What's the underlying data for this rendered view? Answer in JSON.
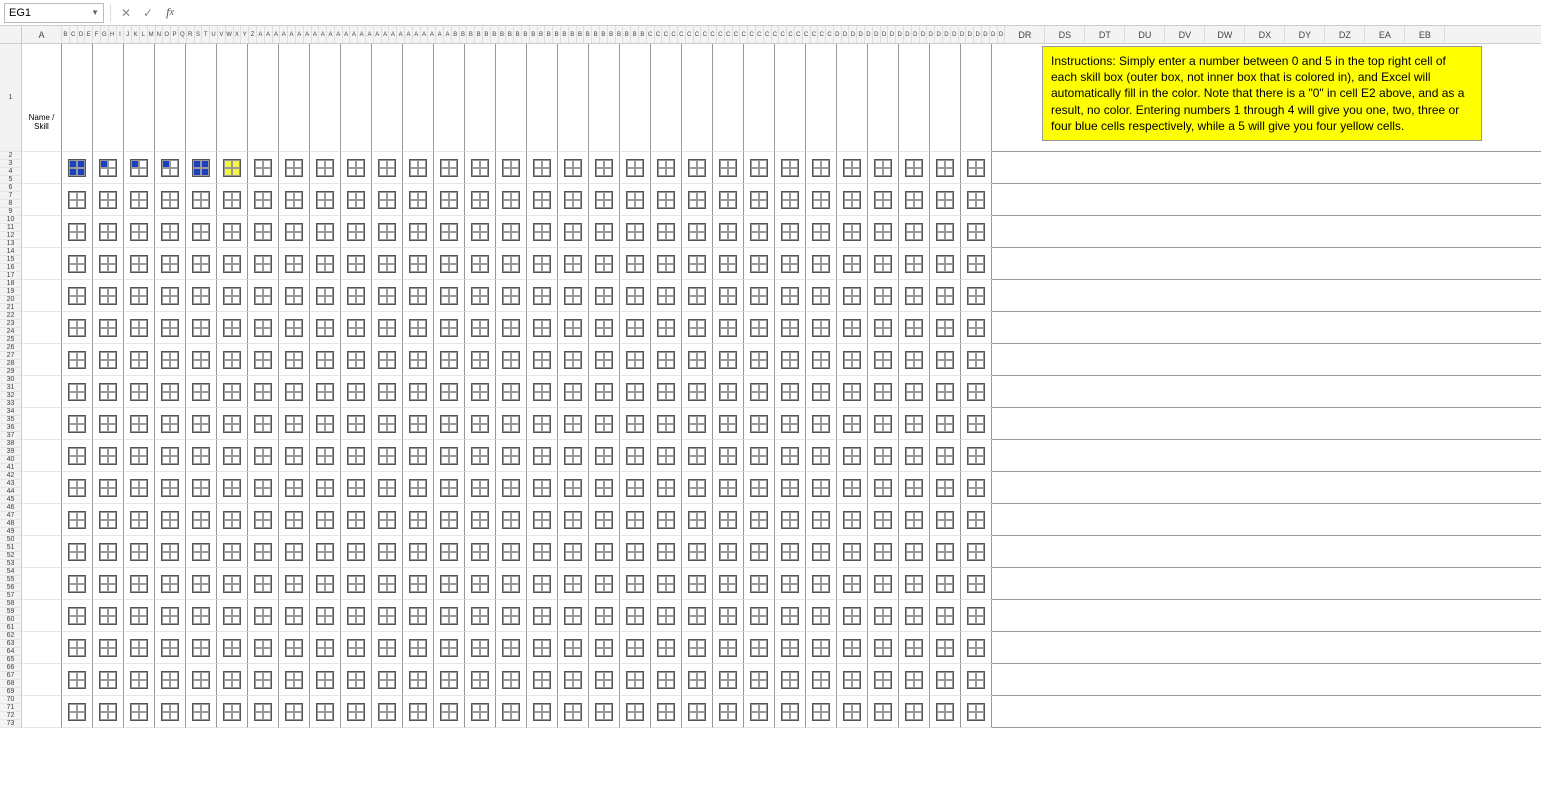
{
  "namebox": "EG1",
  "formula": "",
  "header_label": "Name /\nSkill",
  "instructions_text": "Instructions: Simply enter a number between 0 and 5 in the top right cell of each skill box (outer box, not inner box that is colored in), and Excel will automatically fill in the color. Note that there is a \"0\" in cell E2 above, and as a result, no color. Entering numbers 1 through 4 will give you one, two, three or four blue cells respectively, while a 5 will give you four yellow cells.",
  "col_thin_labels": "BCDEFGHIJKLMNOPQRSTUVWXYZAAAAAAAAAAAAAAAAAAAAAAAAABBBBBBBBBBBBBBBBBBBBBBBBBCCCCCCCCCCCCCCCCCCCCCCCCDDDDDDDDDDDDDDDDDDDDDD",
  "col_wide_labels": [
    "DR",
    "DS",
    "DT",
    "DU",
    "DV",
    "DW",
    "DX",
    "DY",
    "DZ",
    "EA",
    "EB"
  ],
  "skill_rows": 18,
  "skill_cols": 30,
  "skill_values": {
    "r0": [
      4,
      1,
      1,
      1,
      4,
      5,
      0,
      0,
      0,
      0,
      0,
      0,
      0,
      0,
      0,
      0,
      0,
      0,
      0,
      0,
      0,
      0,
      0,
      0,
      0,
      0,
      0,
      0,
      0,
      0
    ]
  },
  "colors": {
    "blue": "#1a40c2",
    "yellow": "#f5f546",
    "highlight": "#ffff00",
    "grid": "#e5e5e5",
    "border_dark": "#999",
    "header_bg": "#f3f3f3"
  },
  "layout": {
    "thin_col_w": 7.8,
    "wide_col_w": 40,
    "a_col_w": 40,
    "skill_box_size": 18,
    "skill_cell_w": 31,
    "skill_row_h": 32,
    "header_row_h": 108
  }
}
